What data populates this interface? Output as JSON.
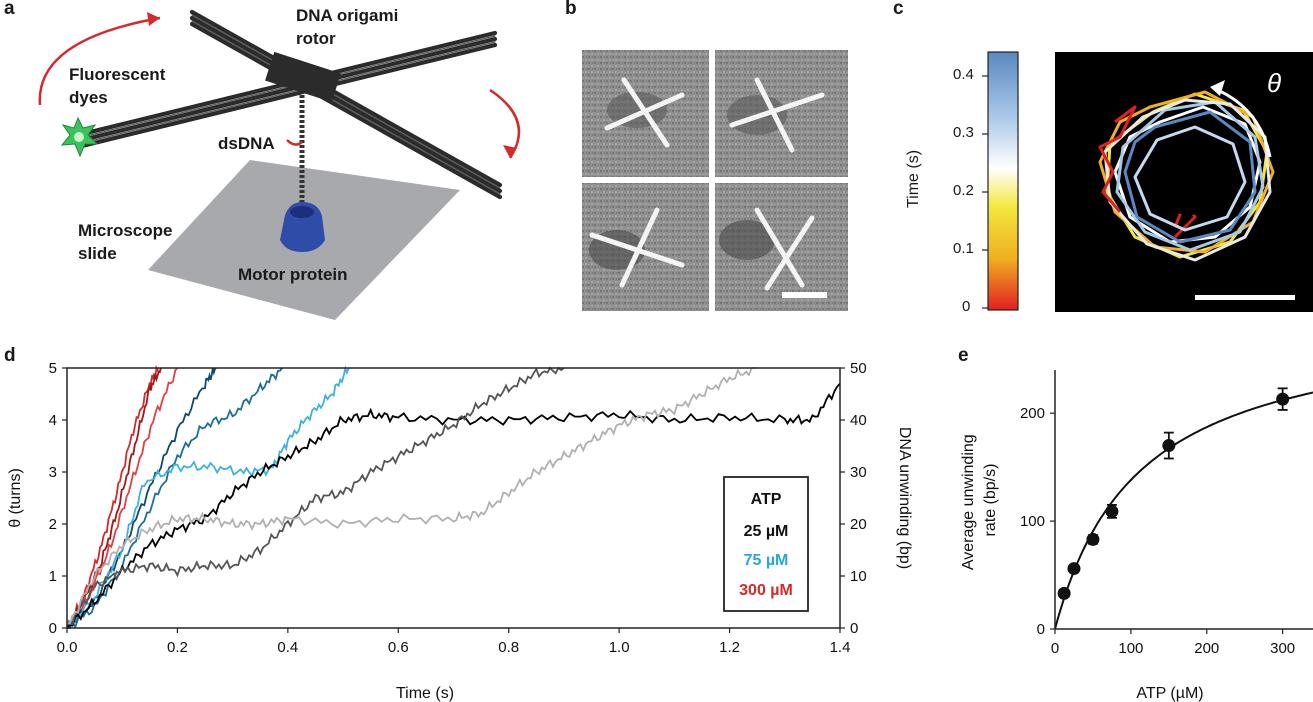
{
  "panels": {
    "a": "a",
    "b": "b",
    "c": "c",
    "d": "d",
    "e": "e"
  },
  "panel_a": {
    "labels": {
      "rotor": "DNA origami\nrotor",
      "dyes": "Fluorescent\ndyes",
      "dsdna": "dsDNA",
      "slide": "Microscope\nslide",
      "motor": "Motor protein"
    }
  },
  "panel_c": {
    "colorbar_label": "Time (s)",
    "colorbar_ticks": [
      "0",
      "0.1",
      "0.2",
      "0.3",
      "0.4"
    ],
    "theta": "θ",
    "colors": [
      "#e02020",
      "#f0b020",
      "#f2e840",
      "#ffffff",
      "#a8c8e8",
      "#5b88c0"
    ]
  },
  "chart_data": [
    {
      "type": "line",
      "panel": "d",
      "xlabel": "Time (s)",
      "ylabel": "θ (turns)",
      "ylabel_right": "DNA unwinding (bp)",
      "xlim": [
        0,
        1.4
      ],
      "ylim": [
        0,
        5
      ],
      "ylim_right": [
        0,
        50
      ],
      "x_ticks": [
        "0.0",
        "0.2",
        "0.4",
        "0.6",
        "0.8",
        "1.0",
        "1.2",
        "1.4"
      ],
      "y_ticks": [
        "0",
        "1",
        "2",
        "3",
        "4",
        "5"
      ],
      "y_ticks_right": [
        "0",
        "10",
        "20",
        "30",
        "40",
        "50"
      ],
      "legend": {
        "title": "ATP",
        "entries": [
          {
            "label": "25 µM",
            "color": "#111111"
          },
          {
            "label": "75 µM",
            "color": "#2aa6d8"
          },
          {
            "label": "300 µM",
            "color": "#d42a2a"
          }
        ],
        "placement": "lower-right"
      },
      "series": [
        {
          "color": "#d42a2a",
          "x": [
            0,
            0.03,
            0.06,
            0.09,
            0.12,
            0.15,
            0.165
          ],
          "y": [
            0,
            0.6,
            1.5,
            2.6,
            3.8,
            4.7,
            5
          ]
        },
        {
          "color": "#a01818",
          "x": [
            0,
            0.03,
            0.06,
            0.09,
            0.12,
            0.15,
            0.17
          ],
          "y": [
            0,
            0.5,
            1.2,
            2.2,
            3.4,
            4.6,
            5
          ]
        },
        {
          "color": "#e04040",
          "x": [
            0,
            0.04,
            0.08,
            0.12,
            0.16,
            0.2
          ],
          "y": [
            0,
            0.6,
            1.6,
            2.9,
            4.1,
            5
          ]
        },
        {
          "color": "#0f4a6e",
          "x": [
            0,
            0.05,
            0.1,
            0.15,
            0.2,
            0.25,
            0.27
          ],
          "y": [
            0,
            0.5,
            1.5,
            2.7,
            3.8,
            4.7,
            5
          ]
        },
        {
          "color": "#1b6e9a",
          "x": [
            0,
            0.05,
            0.1,
            0.15,
            0.2,
            0.25,
            0.3,
            0.35,
            0.39
          ],
          "y": [
            0,
            0.4,
            1.2,
            2.3,
            3.3,
            3.9,
            4.1,
            4.6,
            5
          ]
        },
        {
          "color": "#3fb0e0",
          "x": [
            0,
            0.05,
            0.1,
            0.14,
            0.2,
            0.26,
            0.32,
            0.37,
            0.4,
            0.44,
            0.48,
            0.51
          ],
          "y": [
            0,
            0.6,
            1.5,
            2.8,
            3.1,
            3.1,
            3.0,
            3.05,
            3.6,
            4.1,
            4.5,
            5
          ]
        },
        {
          "color": "#000000",
          "x": [
            0,
            0.05,
            0.1,
            0.15,
            0.2,
            0.25,
            0.3,
            0.35,
            0.4,
            0.45,
            0.5,
            0.55,
            0.6,
            0.7,
            0.8,
            0.9,
            1.0,
            1.1,
            1.2,
            1.3,
            1.35,
            1.4
          ],
          "y": [
            0,
            0.5,
            1.1,
            1.6,
            1.9,
            2.1,
            2.6,
            3.0,
            3.3,
            3.6,
            4.0,
            4.1,
            4.05,
            4.0,
            4.0,
            4.05,
            4.1,
            4.0,
            4.05,
            4.0,
            4.0,
            4.7
          ]
        },
        {
          "color": "#555555",
          "x": [
            0,
            0.05,
            0.1,
            0.15,
            0.2,
            0.25,
            0.3,
            0.35,
            0.4,
            0.45,
            0.5,
            0.55,
            0.6,
            0.65,
            0.7,
            0.75,
            0.8,
            0.85,
            0.9
          ],
          "y": [
            0,
            0.8,
            1.1,
            1.2,
            1.1,
            1.2,
            1.2,
            1.5,
            2.0,
            2.5,
            2.6,
            3.0,
            3.3,
            3.6,
            3.9,
            4.3,
            4.6,
            4.9,
            5
          ]
        },
        {
          "color": "#b0b0b0",
          "x": [
            0,
            0.05,
            0.1,
            0.15,
            0.2,
            0.25,
            0.3,
            0.35,
            0.4,
            0.5,
            0.6,
            0.7,
            0.75,
            0.8,
            0.85,
            0.9,
            0.95,
            1.0,
            1.05,
            1.1,
            1.15,
            1.2,
            1.25
          ],
          "y": [
            0,
            1.0,
            1.6,
            1.9,
            2.1,
            2.1,
            2.0,
            2.0,
            2.1,
            2.0,
            2.1,
            2.1,
            2.2,
            2.6,
            3.0,
            3.3,
            3.6,
            3.9,
            4.1,
            4.2,
            4.5,
            4.8,
            5
          ]
        }
      ]
    },
    {
      "type": "scatter",
      "panel": "e",
      "xlabel": "ATP (µM)",
      "ylabel": "Average unwinding\nrate (bp/s)",
      "xlim": [
        0,
        340
      ],
      "ylim": [
        0,
        240
      ],
      "x_ticks": [
        "0",
        "100",
        "200",
        "300"
      ],
      "y_ticks": [
        "0",
        "100",
        "200"
      ],
      "points": [
        {
          "x": 12,
          "y": 33,
          "err": 3
        },
        {
          "x": 25,
          "y": 56,
          "err": 3
        },
        {
          "x": 50,
          "y": 83,
          "err": 4
        },
        {
          "x": 75,
          "y": 109,
          "err": 6
        },
        {
          "x": 150,
          "y": 170,
          "err": 12
        },
        {
          "x": 300,
          "y": 213,
          "err": 10
        }
      ],
      "fit": {
        "vmax": 290,
        "km": 110
      }
    }
  ]
}
